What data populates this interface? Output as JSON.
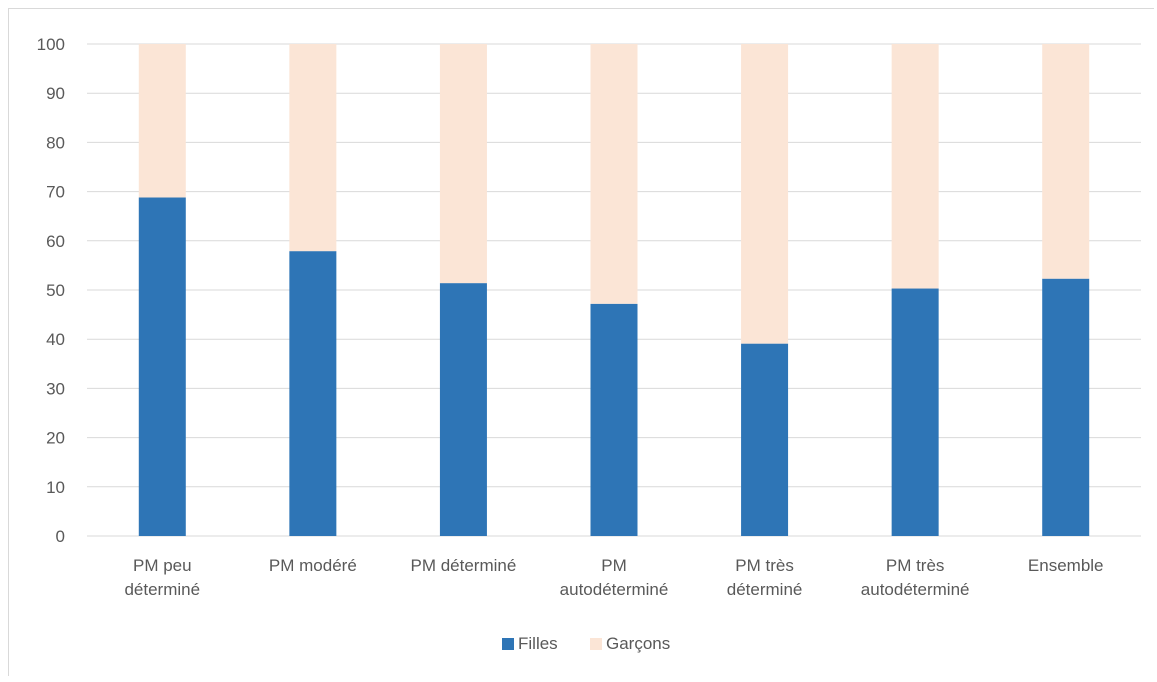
{
  "chart_data": {
    "type": "bar",
    "stacked": true,
    "title": "",
    "xlabel": "",
    "ylabel": "",
    "ylim": [
      0,
      100
    ],
    "yticks": [
      0,
      10,
      20,
      30,
      40,
      50,
      60,
      70,
      80,
      90,
      100
    ],
    "grid": true,
    "legend_position": "bottom",
    "categories": [
      [
        "PM peu",
        "déterminé"
      ],
      [
        "PM modéré"
      ],
      [
        "PM déterminé"
      ],
      [
        "PM",
        "autodéterminé"
      ],
      [
        "PM très",
        "déterminé"
      ],
      [
        "PM très",
        "autodéterminé"
      ],
      [
        "Ensemble"
      ]
    ],
    "series": [
      {
        "name": "Filles",
        "color": "#2e75b6",
        "values": [
          68.8,
          57.9,
          51.4,
          47.2,
          39.1,
          50.3,
          52.3
        ]
      },
      {
        "name": "Garçons",
        "color": "#fbe5d6",
        "values": [
          31.2,
          42.1,
          48.6,
          52.8,
          60.9,
          49.7,
          47.7
        ]
      }
    ]
  }
}
